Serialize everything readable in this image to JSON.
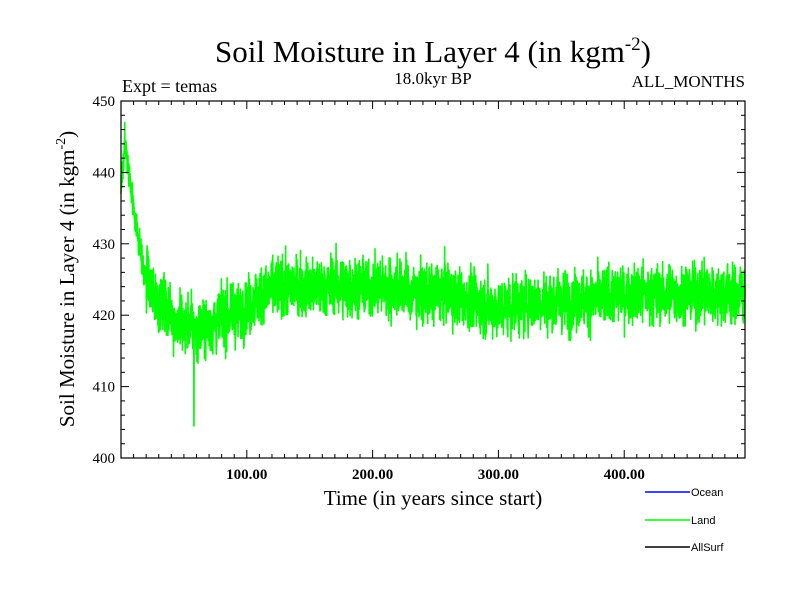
{
  "chart_data": {
    "type": "line",
    "title_main": "Soil Moisture in Layer 4 (in kgm",
    "title_sup": "-2",
    "title_close": ")",
    "experiment_label": "Expt = temas",
    "period_label": "18.0kyr BP",
    "months_label": "ALL_MONTHS",
    "xlabel": "Time (in years since start)",
    "ylabel_main": "Soil Moisture in Layer 4 (in kgm",
    "ylabel_sup": "-2",
    "ylabel_close": ")",
    "xlim": [
      0,
      496
    ],
    "ylim": [
      400,
      450
    ],
    "x_ticks": [
      100,
      200,
      300,
      400
    ],
    "x_tick_labels": [
      "100.00",
      "200.00",
      "300.00",
      "400.00"
    ],
    "y_ticks": [
      400,
      410,
      420,
      430,
      440,
      450
    ],
    "y_tick_labels": [
      "400",
      "410",
      "420",
      "430",
      "440",
      "450"
    ],
    "colors": {
      "ocean": "#0000ff",
      "land": "#00ff00",
      "allsurf": "#000000"
    },
    "legend": [
      {
        "name": "Ocean",
        "color": "#0000ff"
      },
      {
        "name": "Land",
        "color": "#00ff00"
      },
      {
        "name": "AllSurf",
        "color": "#000000"
      }
    ],
    "series": [
      {
        "name": "Land",
        "color": "#00ff00",
        "x_start": 0,
        "x_end": 496,
        "n_points": 5000,
        "trend_key_x": [
          0,
          3,
          6,
          12,
          18,
          25,
          35,
          45,
          60,
          75,
          90,
          105,
          125,
          150,
          175,
          200,
          220,
          240,
          260,
          280,
          300,
          330,
          360,
          400,
          450,
          496
        ],
        "trend_key_y": [
          438,
          444,
          440,
          433,
          426,
          423,
          421,
          419,
          418,
          419,
          420,
          422,
          424,
          424,
          424,
          424,
          424,
          423,
          423,
          422,
          421,
          422,
          422,
          423,
          423,
          423
        ],
        "noise_amplitude": 4.6,
        "min_point": {
          "x": 58,
          "y": 404.5
        },
        "max_point": {
          "x": 3,
          "y": 447
        }
      }
    ]
  }
}
